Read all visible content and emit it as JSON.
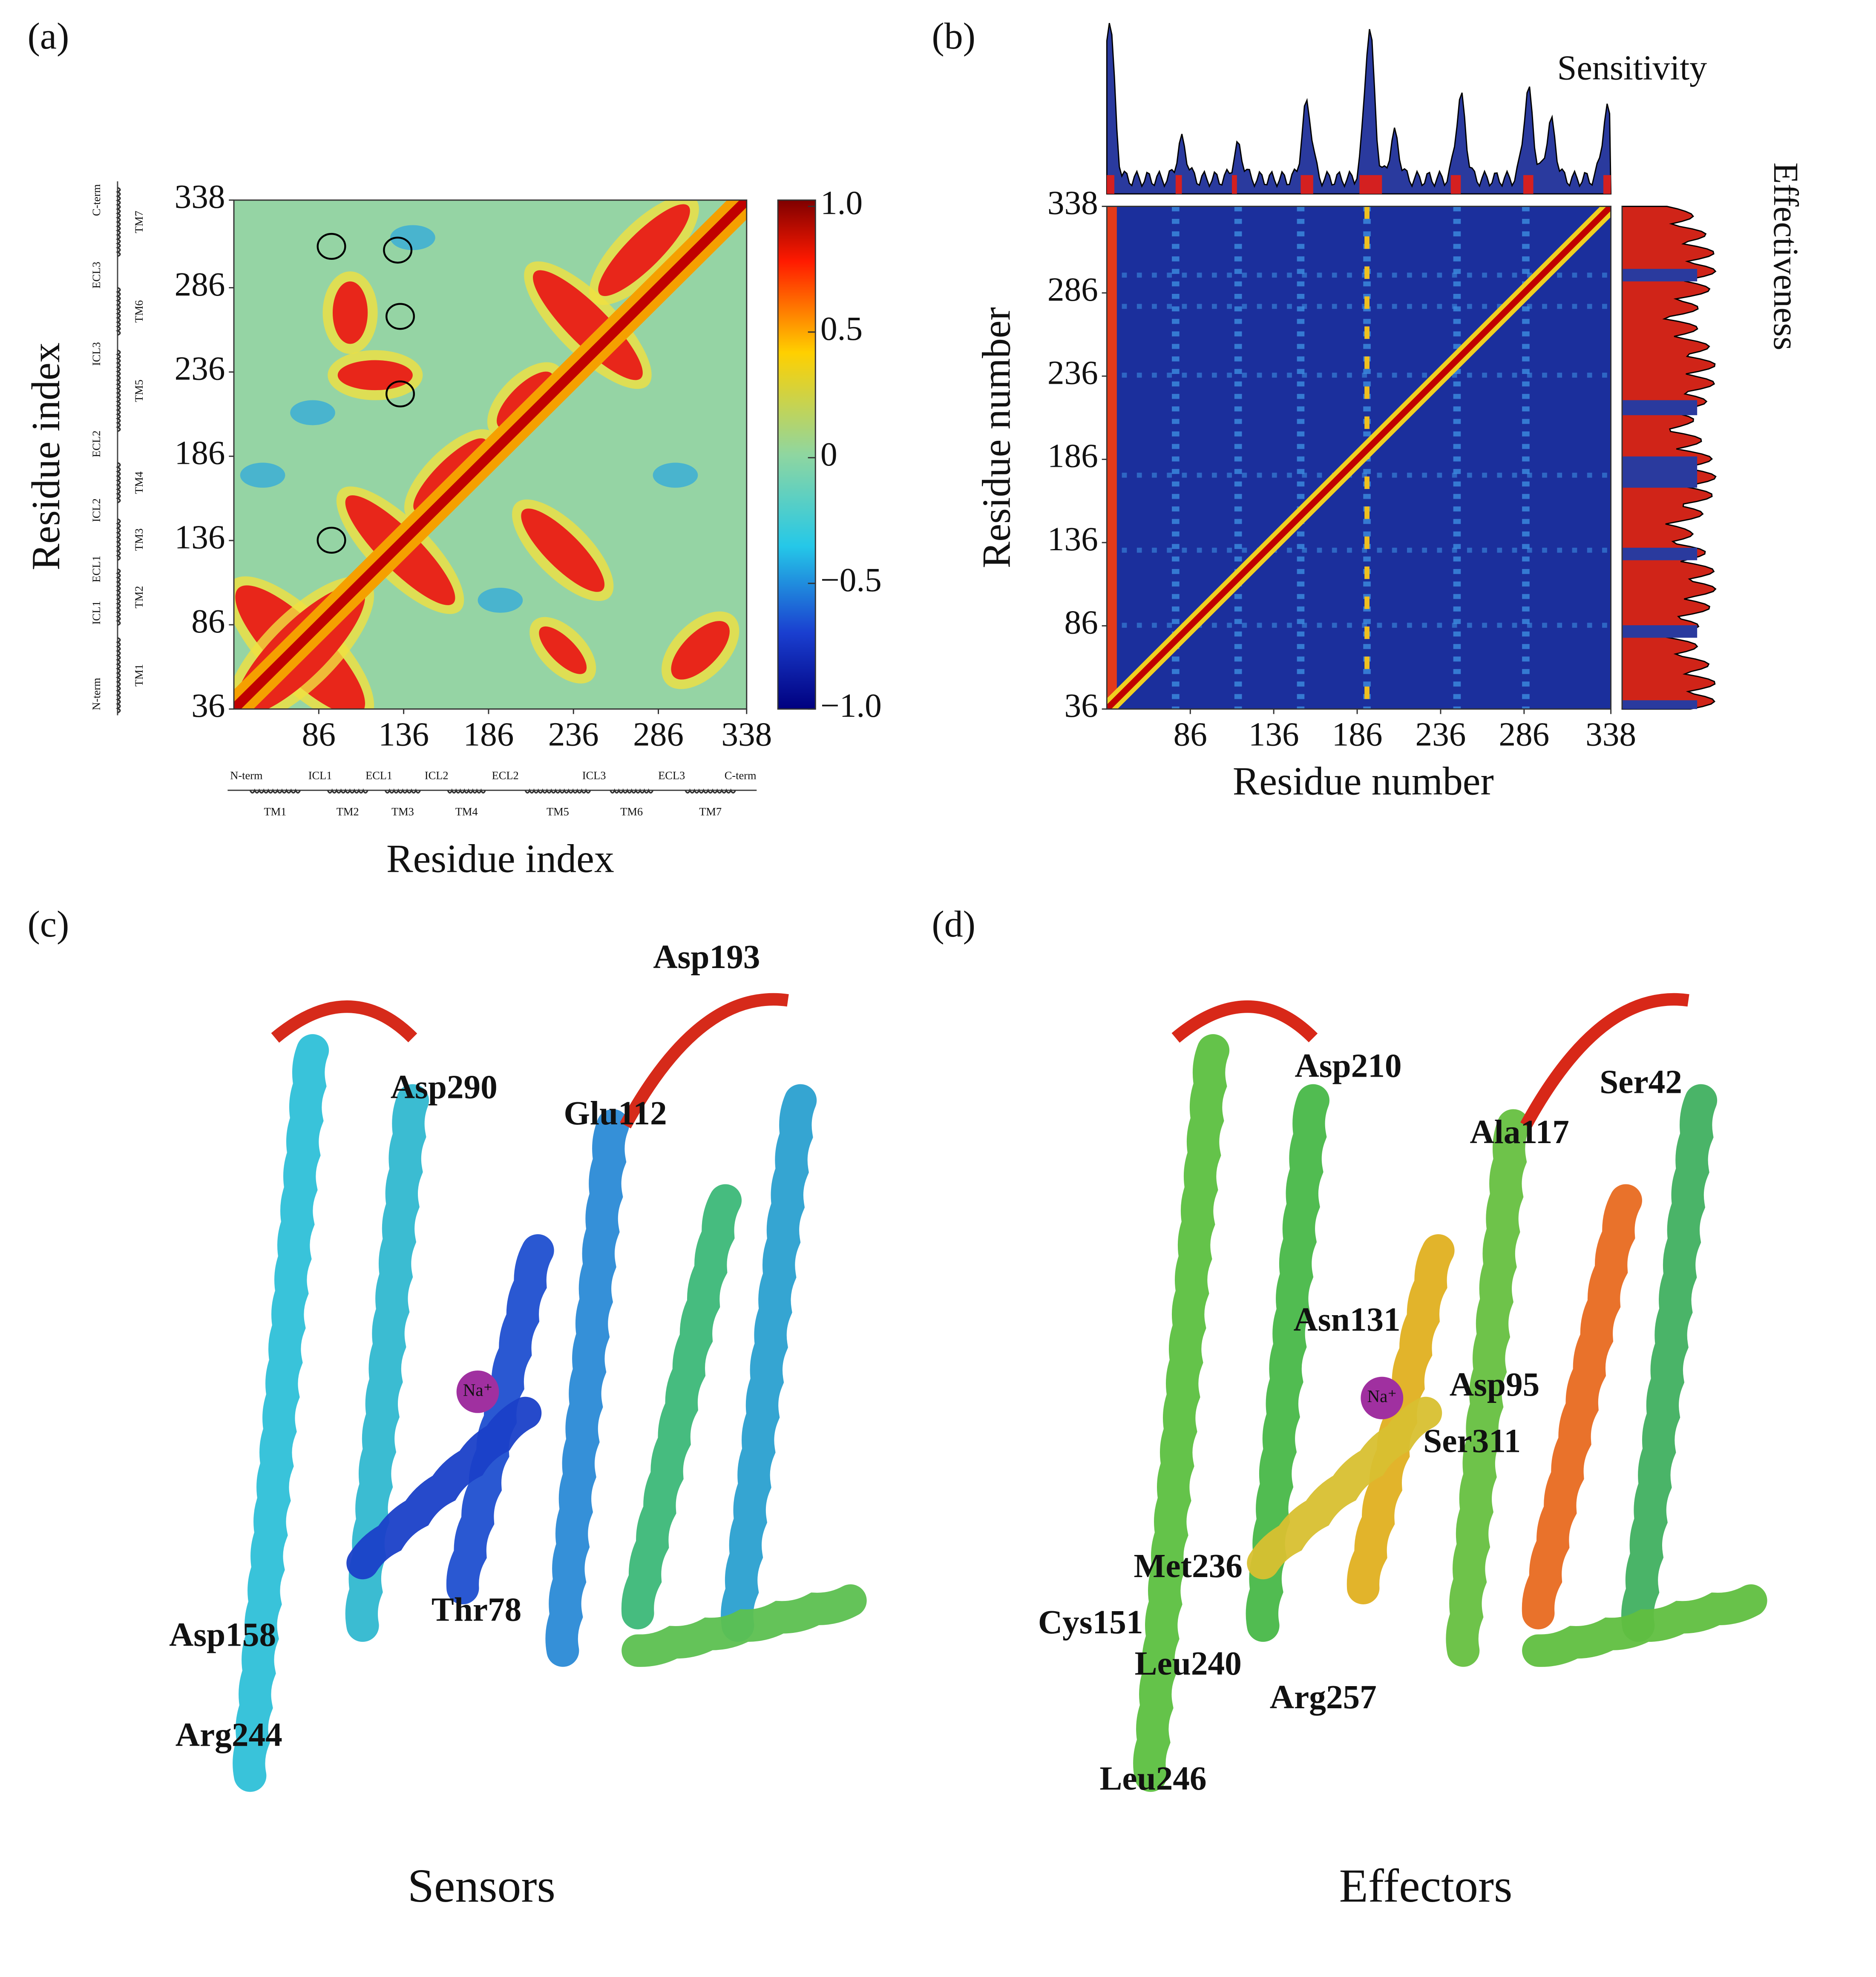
{
  "panels": [
    {
      "label": "(a)",
      "x_label": "Residue index",
      "y_label": "Residue index",
      "lim": [
        36,
        338
      ],
      "ticks": [
        36,
        86,
        136,
        186,
        236,
        286,
        338
      ],
      "colorbar_lim": [
        -1,
        1
      ],
      "colorbar_ticks": [
        {
          "value": 1,
          "label": "1.0"
        },
        0.5,
        0,
        {
          "value": -0.5,
          "label": "−0.5"
        },
        {
          "value": -1,
          "label": "−1.0"
        }
      ],
      "segments": [
        "N-term",
        "ICL1",
        "ECL1",
        "ICL2",
        "ECL2",
        "ICL3",
        "ECL3",
        "C-term"
      ],
      "helices": [
        "TM1",
        "TM2",
        "TM3",
        "TM4",
        "TM5",
        "TM6",
        "TM7"
      ]
    },
    {
      "label": "(b)",
      "x_label": "Residue number",
      "y_label": "Residue number",
      "lim": [
        36,
        338
      ],
      "ticks": [
        36,
        86,
        136,
        186,
        236,
        286,
        338
      ],
      "top_label": "Sensitivity",
      "side_label": "Effectiveness"
    },
    {
      "label": "(c)",
      "caption": "Sensors",
      "ion": "Na⁺",
      "residues": [
        "Asp193",
        "Asp290",
        "Glu112",
        "Asp158",
        "Thr78",
        "Arg244"
      ]
    },
    {
      "label": "(d)",
      "caption": "Effectors",
      "ion": "Na⁺",
      "residues": [
        "Asp210",
        "Ser42",
        "Ala117",
        "Asn131",
        "Asp95",
        "Ser311",
        "Met236",
        "Cys151",
        "Leu240",
        "Arg257",
        "Leu246"
      ]
    }
  ]
}
